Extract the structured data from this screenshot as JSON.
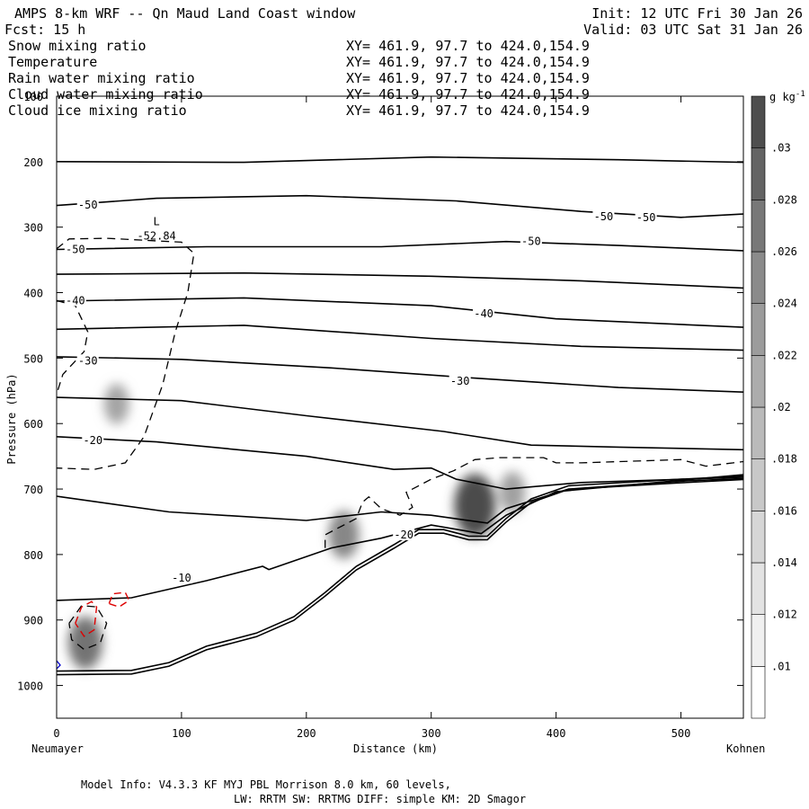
{
  "header": {
    "title": "AMPS 8-km WRF -- Qn Maud Land Coast window",
    "init": "Init: 12 UTC Fri 30 Jan 26",
    "fcst": "Fcst:   15 h",
    "valid": "Valid: 03 UTC Sat 31 Jan 26"
  },
  "legend": [
    {
      "name": "Snow mixing ratio",
      "xy": "XY= 461.9, 97.7 to 424.0,154.9",
      "color": "#000000"
    },
    {
      "name": "Temperature",
      "xy": "XY= 461.9, 97.7 to 424.0,154.9",
      "color": "#000000"
    },
    {
      "name": "Rain water mixing ratio",
      "xy": "XY= 461.9, 97.7 to 424.0,154.9",
      "color": "#dd0000"
    },
    {
      "name": "Cloud water mixing ratio",
      "xy": "XY= 461.9, 97.7 to 424.0,154.9",
      "color": "#0000cc"
    },
    {
      "name": "Cloud ice mixing ratio",
      "xy": "XY= 461.9, 97.7 to 424.0,154.9",
      "color": "#000000"
    }
  ],
  "footer": {
    "line1": "Model Info: V4.3.3   KF      MYJ PBL  Morrison              8.0 km,  60 levels,",
    "line2": "LW: RRTM SW: RRTMG   DIFF: simple KM: 2D Smagor"
  },
  "chart_data": {
    "type": "cross-section",
    "xlabel": "Distance (km)",
    "ylabel": "Pressure (hPa)",
    "xlim": [
      0,
      550
    ],
    "ylim": [
      1050,
      100
    ],
    "x_ticks": [
      0,
      100,
      200,
      300,
      400,
      500
    ],
    "y_ticks": [
      100,
      200,
      300,
      400,
      500,
      600,
      700,
      800,
      900,
      1000
    ],
    "left_endpoint": "Neumayer",
    "right_endpoint": "Kohnen",
    "colorbar": {
      "unit_base": "g kg",
      "unit_exp": "-1",
      "labels": [
        ".01",
        ".012",
        ".014",
        ".016",
        ".018",
        ".02",
        ".022",
        ".024",
        ".026",
        ".028",
        ".03"
      ],
      "colors": [
        "#ffffff",
        "#f0f0f0",
        "#e3e3e3",
        "#d6d6d6",
        "#c8c8c8",
        "#bababa",
        "#acacac",
        "#9c9c9c",
        "#8b8b8b",
        "#787878",
        "#646464",
        "#4e4e4e"
      ]
    },
    "temperature_labels": [
      {
        "text": "-50",
        "x": 25,
        "p": 266
      },
      {
        "text": "-50",
        "x": 438,
        "p": 284
      },
      {
        "text": "-50",
        "x": 472,
        "p": 285
      },
      {
        "text": "-50",
        "x": 380,
        "p": 322
      },
      {
        "text": "-50",
        "x": 15,
        "p": 334
      },
      {
        "text": "-40",
        "x": 15,
        "p": 412
      },
      {
        "text": "-40",
        "x": 342,
        "p": 432
      },
      {
        "text": "-30",
        "x": 25,
        "p": 504
      },
      {
        "text": "-30",
        "x": 323,
        "p": 535
      },
      {
        "text": "-20",
        "x": 29,
        "p": 626
      },
      {
        "text": "-20",
        "x": 278,
        "p": 770
      },
      {
        "text": "-10",
        "x": 100,
        "p": 836
      }
    ],
    "low_marker": {
      "symbol": "L",
      "value": "-52.84",
      "x": 80,
      "p": 308
    },
    "snow_blobs": [
      {
        "x": 23,
        "p": 935,
        "value": 0.022
      },
      {
        "x": 48,
        "p": 570,
        "value": 0.012
      },
      {
        "x": 230,
        "p": 770,
        "value": 0.018
      },
      {
        "x": 335,
        "p": 725,
        "value": 0.03
      },
      {
        "x": 365,
        "p": 705,
        "value": 0.013
      }
    ],
    "terrain": [
      [
        0,
        978
      ],
      [
        60,
        977
      ],
      [
        90,
        965
      ],
      [
        120,
        940
      ],
      [
        160,
        920
      ],
      [
        190,
        895
      ],
      [
        215,
        858
      ],
      [
        240,
        818
      ],
      [
        270,
        785
      ],
      [
        290,
        762
      ],
      [
        310,
        762
      ],
      [
        330,
        772
      ],
      [
        345,
        772
      ],
      [
        360,
        745
      ],
      [
        380,
        715
      ],
      [
        410,
        695
      ],
      [
        500,
        685
      ],
      [
        550,
        680
      ]
    ]
  }
}
